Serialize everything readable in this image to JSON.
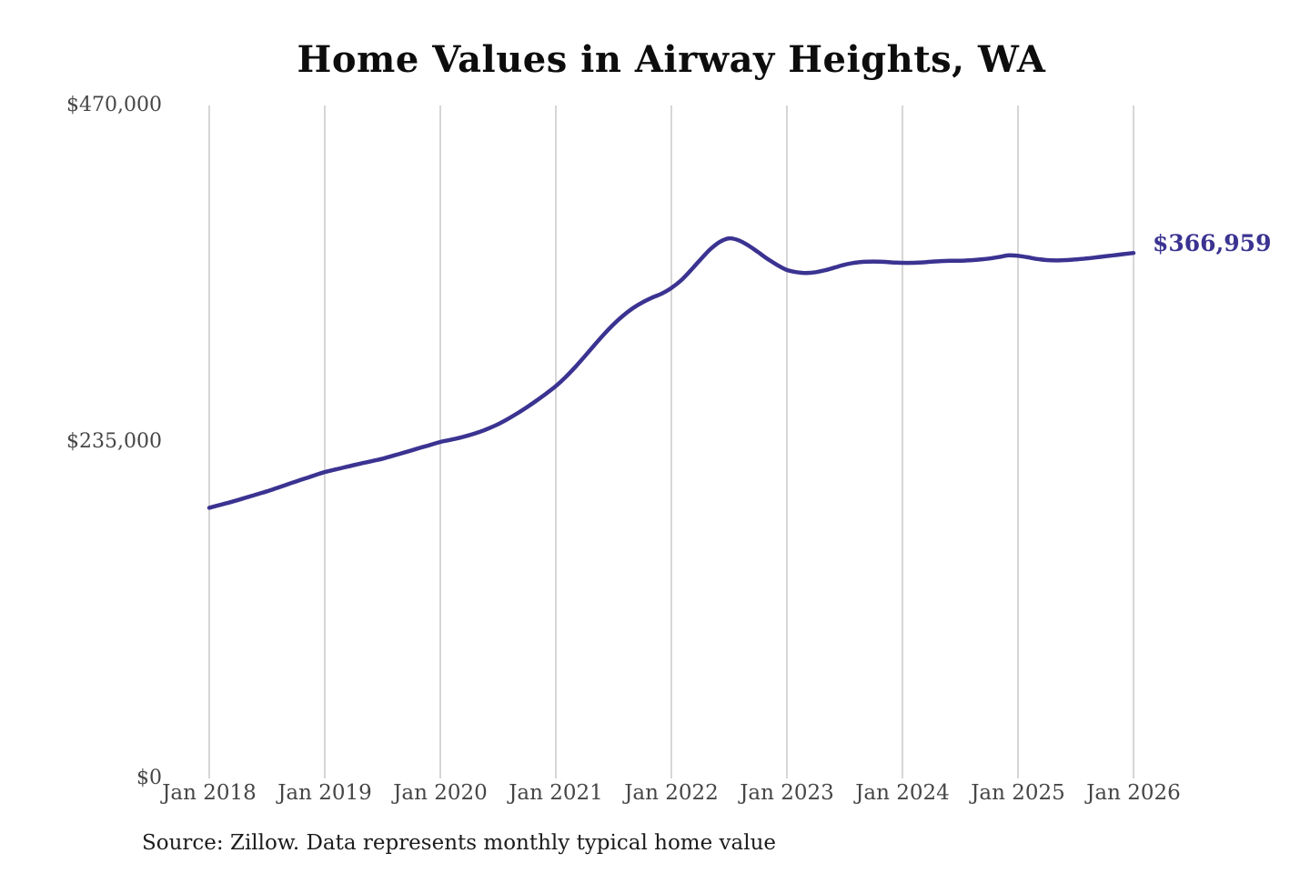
{
  "chart_data": {
    "type": "line",
    "title": "Home Values in Airway Heights, WA",
    "source_note": "Source: Zillow. Data represents monthly typical home value",
    "latest_value": 366959,
    "latest_value_label": "$366,959",
    "line_color": "#3b3391",
    "gridline_color": "#c9c9c9",
    "grid": "vertical-only",
    "legend": "none",
    "ylim": [
      0,
      470000
    ],
    "y_ticks": [
      {
        "label": "$0",
        "value": 0
      },
      {
        "label": "$235,000",
        "value": 235000
      },
      {
        "label": "$470,000",
        "value": 470000
      }
    ],
    "x_tick_labels": [
      "Jan 2018",
      "Jan 2019",
      "Jan 2020",
      "Jan 2021",
      "Jan 2022",
      "Jan 2023",
      "Jan 2024",
      "Jan 2025",
      "Jan 2026"
    ],
    "x_tick_month_indices": [
      0,
      12,
      24,
      36,
      48,
      60,
      72,
      84,
      96
    ],
    "series": [
      {
        "name": "Typical home value",
        "x_start_month": "2018-01",
        "x_end_month": "2026-01",
        "cadence": "monthly",
        "values": [
          189000,
          190800,
          192600,
          194500,
          196500,
          198500,
          200500,
          202800,
          205100,
          207400,
          209600,
          211800,
          214000,
          215600,
          217200,
          218800,
          220300,
          221800,
          223300,
          225200,
          227100,
          229100,
          231100,
          233000,
          235000,
          236400,
          237900,
          239700,
          241800,
          244400,
          247400,
          251000,
          255000,
          259300,
          263900,
          268800,
          274000,
          280200,
          287200,
          294800,
          302600,
          310200,
          317200,
          323300,
          328400,
          332500,
          335800,
          338600,
          342500,
          347800,
          354800,
          362200,
          369300,
          374600,
          377200,
          375800,
          372200,
          367600,
          362800,
          358600,
          355100,
          353600,
          353000,
          353600,
          355000,
          356900,
          358800,
          360100,
          360800,
          361000,
          360800,
          360400,
          360100,
          360100,
          360400,
          360900,
          361300,
          361500,
          361600,
          361900,
          362400,
          363100,
          364100,
          365300,
          365000,
          364000,
          362800,
          362000,
          361800,
          362000,
          362500,
          363100,
          363800,
          364600,
          365400,
          366200,
          366959
        ]
      }
    ]
  }
}
